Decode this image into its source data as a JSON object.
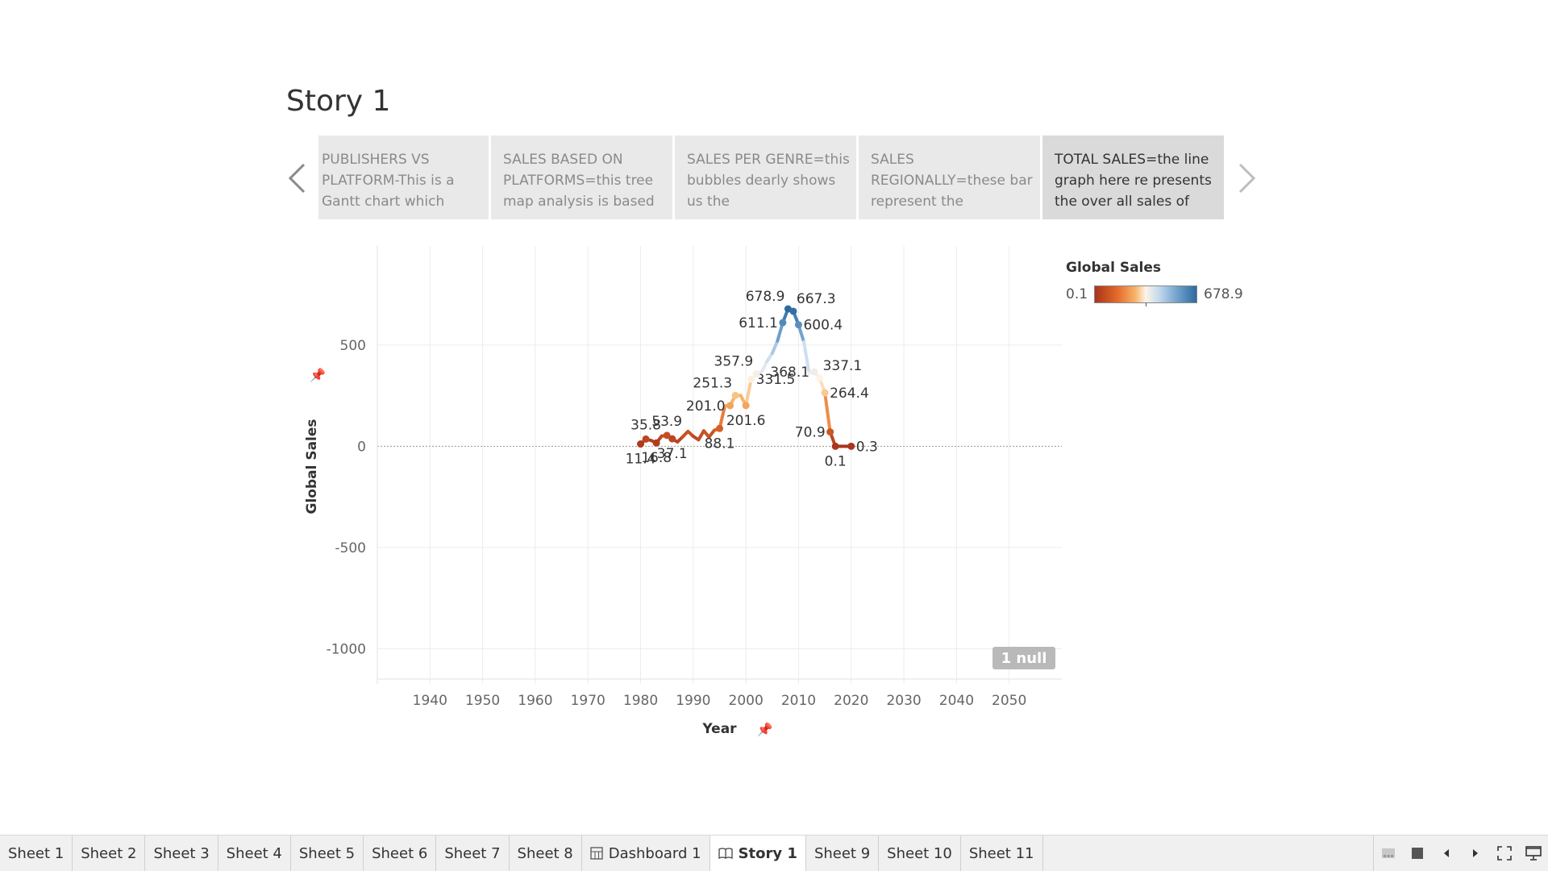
{
  "story": {
    "title": "Story 1"
  },
  "captions": [
    {
      "text": "PUBLISHERS VS PLATFORM-This is a Gantt chart which"
    },
    {
      "text": "SALES BASED ON PLATFORMS=this tree map analysis is based"
    },
    {
      "text": "SALES PER GENRE=this bubbles dearly shows us the"
    },
    {
      "text": "SALES REGIONALLY=these bar represent the"
    },
    {
      "text": "TOTAL SALES=the line graph here re presents the over all sales of"
    }
  ],
  "legend": {
    "title": "Global Sales",
    "min_label": "0.1",
    "max_label": "678.9"
  },
  "null_badge": "1 null",
  "chart_data": {
    "type": "line",
    "xlabel": "Year",
    "ylabel": "Global Sales",
    "xlim": [
      1930,
      2060
    ],
    "ylim": [
      -1150,
      950
    ],
    "x_ticks": [
      1940,
      1950,
      1960,
      1970,
      1980,
      1990,
      2000,
      2010,
      2020,
      2030,
      2040,
      2050
    ],
    "y_ticks": [
      500,
      0,
      -500,
      -1000
    ],
    "grid": true,
    "color_scale": {
      "min": 0.1,
      "max": 678.9,
      "colors": [
        "#a8351c",
        "#e36a2a",
        "#f7b46b",
        "#fdf3e7",
        "#c7dcef",
        "#6e9fca",
        "#2d6aa0"
      ]
    },
    "series": [
      {
        "x": [
          1980,
          1981,
          1982,
          1983,
          1984,
          1985,
          1986,
          1987,
          1988,
          1989,
          1990,
          1991,
          1992,
          1993,
          1994,
          1995,
          1996,
          1997,
          1998,
          1999,
          2000,
          2001,
          2002,
          2003,
          2004,
          2005,
          2006,
          2007,
          2008,
          2009,
          2010,
          2011,
          2012,
          2013,
          2014,
          2015,
          2016,
          2017,
          2018,
          2019,
          2020
        ],
        "y": [
          11.4,
          35.8,
          28.9,
          16.8,
          50.4,
          53.9,
          37.1,
          21.7,
          47.2,
          73.5,
          49.4,
          32.2,
          76.2,
          45.9,
          79.2,
          88.1,
          199.2,
          201.0,
          251.3,
          251.3,
          201.6,
          331.5,
          357.9,
          368.1,
          419.3,
          459.5,
          521.0,
          611.1,
          678.9,
          667.3,
          600.4,
          515.8,
          363.5,
          368.1,
          337.1,
          264.4,
          70.9,
          0.1,
          0.1,
          0.1,
          0.3
        ],
        "labels": [
          {
            "x": 1980,
            "text": "11.4",
            "pos": "below"
          },
          {
            "x": 1981,
            "text": "35.8",
            "pos": "above"
          },
          {
            "x": 1983,
            "text": "16.8",
            "pos": "below"
          },
          {
            "x": 1985,
            "text": "53.9",
            "pos": "above"
          },
          {
            "x": 1986,
            "text": "37.1",
            "pos": "below"
          },
          {
            "x": 1995,
            "text": "88.1",
            "pos": "below"
          },
          {
            "x": 1997,
            "text": "201.0",
            "pos": "left"
          },
          {
            "x": 1998,
            "text": "251.3",
            "pos": "above-left"
          },
          {
            "x": 2000,
            "text": "201.6",
            "pos": "below"
          },
          {
            "x": 2001,
            "text": "331.5",
            "pos": "right"
          },
          {
            "x": 2002,
            "text": "357.9",
            "pos": "above-left"
          },
          {
            "x": 2007,
            "text": "611.1",
            "pos": "left"
          },
          {
            "x": 2008,
            "text": "678.9",
            "pos": "above-left"
          },
          {
            "x": 2009,
            "text": "667.3",
            "pos": "above-right"
          },
          {
            "x": 2010,
            "text": "600.4",
            "pos": "right"
          },
          {
            "x": 2013,
            "text": "368.1",
            "pos": "left"
          },
          {
            "x": 2014,
            "text": "337.1",
            "pos": "above-right"
          },
          {
            "x": 2015,
            "text": "264.4",
            "pos": "right"
          },
          {
            "x": 2016,
            "text": "70.9",
            "pos": "left"
          },
          {
            "x": 2017,
            "text": "0.1",
            "pos": "below"
          },
          {
            "x": 2020,
            "text": "0.3",
            "pos": "right"
          }
        ]
      }
    ]
  },
  "tabs": [
    {
      "label": "Sheet 1"
    },
    {
      "label": "Sheet 2"
    },
    {
      "label": "Sheet 3"
    },
    {
      "label": "Sheet 4"
    },
    {
      "label": "Sheet 5"
    },
    {
      "label": "Sheet 6"
    },
    {
      "label": "Sheet 7"
    },
    {
      "label": "Sheet 8"
    },
    {
      "label": "Dashboard 1",
      "icon": "dashboard-icon"
    },
    {
      "label": "Story 1",
      "icon": "book-icon",
      "active": true
    },
    {
      "label": "Sheet 9"
    },
    {
      "label": "Sheet 10"
    },
    {
      "label": "Sheet 11"
    }
  ],
  "tab_controls": [
    "filmstrip-icon",
    "show-tabs-icon",
    "prev-sheet-icon",
    "next-sheet-icon",
    "fullscreen-icon",
    "presentation-icon"
  ]
}
